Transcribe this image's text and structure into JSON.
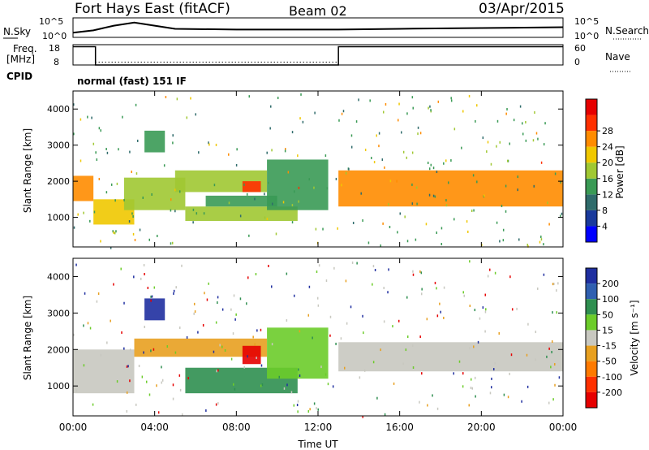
{
  "header": {
    "station": "Fort Hays East (fitACF)",
    "beam": "Beam 02",
    "date": "03/Apr/2015"
  },
  "top_panels": {
    "nsky_label": "N.Sky",
    "nsky_ticks": [
      "10^5",
      "10^0"
    ],
    "nsearch_label": "N.Search",
    "nsearch_ticks": [
      "10^5",
      "10^0"
    ],
    "freq_label_1": "Freq.",
    "freq_label_2": "[MHz]",
    "freq_ticks": [
      "18",
      "8"
    ],
    "nave_label": "Nave",
    "nave_ticks": [
      "60",
      "0"
    ],
    "cpid_label": "CPID",
    "cpid_text": "normal (fast) 151 IF"
  },
  "axes": {
    "xlabel": "Time UT",
    "ylabel": "Slant Range [km]",
    "xticks": [
      "00:00",
      "04:00",
      "08:00",
      "12:00",
      "16:00",
      "20:00",
      "00:00"
    ],
    "yticks": [
      "1000",
      "2000",
      "3000",
      "4000"
    ]
  },
  "power_colorbar": {
    "label": "Power [dB]",
    "ticks": [
      "4",
      "8",
      "12",
      "16",
      "20",
      "24",
      "28"
    ],
    "colors": [
      "#0000ff",
      "#1a3a9c",
      "#2f6b6b",
      "#3a9a55",
      "#a0c832",
      "#f0c800",
      "#ff8c00",
      "#ff3000",
      "#e60000"
    ]
  },
  "velocity_colorbar": {
    "label": "Velocity [m s⁻¹]",
    "ticks": [
      "200",
      "100",
      "50",
      "15",
      "-15",
      "-50",
      "-100",
      "-200"
    ],
    "colors": [
      "#1f2fa0",
      "#2f5fb0",
      "#2f8f50",
      "#6ccc2a",
      "#c8c8c0",
      "#e8a020",
      "#ff7a00",
      "#ff3000",
      "#e60000"
    ]
  },
  "chart_data": [
    {
      "type": "line",
      "title": "N.Sky / N.Search",
      "x_unit": "hours UT",
      "xlim": [
        0,
        24
      ],
      "ylim_log10": [
        0,
        5
      ],
      "series": [
        {
          "values_log10": [
            [
              0,
              1.2
            ],
            [
              1,
              1.8
            ],
            [
              2,
              3.0
            ],
            [
              3,
              3.8
            ],
            [
              4,
              3.0
            ],
            [
              5,
              2.2
            ],
            [
              8,
              2.0
            ],
            [
              12,
              2.0
            ],
            [
              13,
              2.0
            ],
            [
              16,
              2.2
            ],
            [
              20,
              2.4
            ],
            [
              24,
              2.6
            ]
          ]
        }
      ]
    },
    {
      "type": "line",
      "title": "Freq. / Nave",
      "xlim": [
        0,
        24
      ],
      "freq_ylim": [
        8,
        18
      ],
      "freq_segments": [
        [
          0,
          1.1,
          17
        ],
        [
          1.1,
          13.0,
          8
        ],
        [
          13.0,
          24,
          17
        ]
      ],
      "nave_ylim": [
        0,
        60
      ],
      "nave_value": 8
    },
    {
      "type": "heatmap",
      "title": "Power",
      "xlabel": "Time UT",
      "ylabel": "Slant Range [km]",
      "xlim": [
        0,
        24
      ],
      "ylim": [
        180,
        4500
      ],
      "colorbar": {
        "label": "Power [dB]",
        "range": [
          0,
          30
        ]
      },
      "regions": [
        {
          "t0": 0.0,
          "t1": 1.0,
          "r_bottom": 1450,
          "r_top": 2150,
          "peak": 22
        },
        {
          "t0": 1.0,
          "t1": 3.0,
          "r_bottom": 800,
          "r_top": 1500,
          "peak": 18
        },
        {
          "t0": 2.5,
          "t1": 5.5,
          "r_bottom": 1200,
          "r_top": 2100,
          "peak": 14
        },
        {
          "t0": 3.5,
          "t1": 4.5,
          "r_bottom": 2800,
          "r_top": 3400,
          "peak": 12
        },
        {
          "t0": 5.0,
          "t1": 9.5,
          "r_bottom": 1700,
          "r_top": 2300,
          "peak": 16
        },
        {
          "t0": 8.3,
          "t1": 9.2,
          "r_bottom": 1700,
          "r_top": 2000,
          "peak": 26
        },
        {
          "t0": 5.5,
          "t1": 11.0,
          "r_bottom": 900,
          "r_top": 1300,
          "peak": 14
        },
        {
          "t0": 6.5,
          "t1": 10.0,
          "r_bottom": 1300,
          "r_top": 1600,
          "peak": 12
        },
        {
          "t0": 9.5,
          "t1": 12.5,
          "r_bottom": 1200,
          "r_top": 2600,
          "peak": 12
        },
        {
          "t0": 13.0,
          "t1": 24.0,
          "r_bottom": 1300,
          "r_top": 2300,
          "peak": 22
        }
      ]
    },
    {
      "type": "heatmap",
      "title": "Velocity",
      "xlabel": "Time UT",
      "ylabel": "Slant Range [km]",
      "xlim": [
        0,
        24
      ],
      "ylim": [
        180,
        4500
      ],
      "colorbar": {
        "label": "Velocity [m s⁻¹]",
        "range": [
          -200,
          200
        ]
      },
      "regions": [
        {
          "t0": 0.0,
          "t1": 3.0,
          "r_bottom": 800,
          "r_top": 2000,
          "velocity": 0
        },
        {
          "t0": 3.0,
          "t1": 9.5,
          "r_bottom": 1800,
          "r_top": 2300,
          "velocity": -10
        },
        {
          "t0": 8.3,
          "t1": 9.2,
          "r_bottom": 1600,
          "r_top": 2100,
          "velocity": -180
        },
        {
          "t0": 5.5,
          "t1": 11.0,
          "r_bottom": 800,
          "r_top": 1500,
          "velocity": 40
        },
        {
          "t0": 9.5,
          "t1": 12.5,
          "r_bottom": 1200,
          "r_top": 2600,
          "velocity": 30
        },
        {
          "t0": 3.5,
          "t1": 4.5,
          "r_bottom": 2800,
          "r_top": 3400,
          "velocity": 150
        },
        {
          "t0": 13.0,
          "t1": 24.0,
          "r_bottom": 1400,
          "r_top": 2200,
          "velocity": 0
        }
      ]
    }
  ]
}
